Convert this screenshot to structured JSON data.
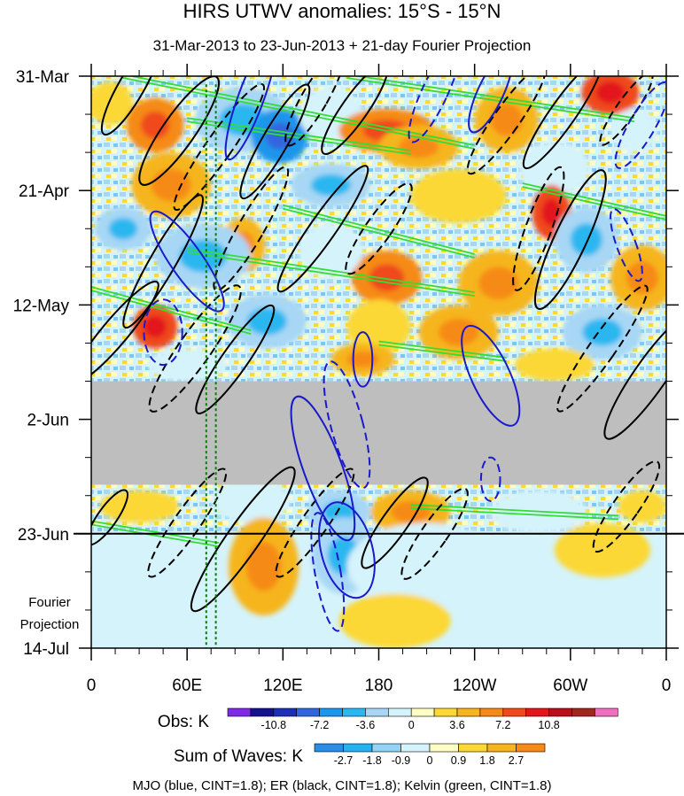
{
  "chart_data": {
    "type": "heatmap",
    "title": "HIRS UTWV anomalies: 15°S - 15°N",
    "subtitle": "31-Mar-2013 to 23-Jun-2013 + 21-day Fourier Projection",
    "x_ticks": [
      "0",
      "60E",
      "120E",
      "180",
      "120W",
      "60W",
      "0"
    ],
    "x_tick_lons": [
      0,
      60,
      120,
      180,
      240,
      300,
      360
    ],
    "x_range": [
      0,
      360
    ],
    "y_ticks": [
      "31-Mar",
      "21-Apr",
      "12-May",
      "2-Jun",
      "23-Jun",
      "14-Jul"
    ],
    "y_tick_days": [
      0,
      21,
      42,
      63,
      84,
      105
    ],
    "y_range_days": [
      0,
      105
    ],
    "observation_end_day": 84,
    "missing_data_band_days": [
      56,
      75
    ],
    "projection_label": [
      "Fourier",
      "Projection"
    ],
    "reference_lines_lon": [
      72,
      78
    ],
    "obs_legend": {
      "label": "Obs: K",
      "colors": [
        "#7f2ae6",
        "#14128c",
        "#1c2fb5",
        "#3366dd",
        "#1e96eb",
        "#2ab7f0",
        "#a7d7f5",
        "#d5f3fb",
        "#fffdc6",
        "#fbd836",
        "#f6b51e",
        "#f68a19",
        "#ef4a1b",
        "#e2161b",
        "#b90f1c",
        "#a0261e",
        "#ee6fc0"
      ],
      "labels": [
        "-10.8",
        "-7.2",
        "-3.6",
        "0",
        "3.6",
        "7.2",
        "10.8"
      ]
    },
    "waves_legend": {
      "label": "Sum of Waves: K",
      "colors": [
        "#2b8de6",
        "#26b1ef",
        "#93d3f4",
        "#d5f3fb",
        "#fffdc6",
        "#fbd836",
        "#f6b51e",
        "#f68a19"
      ],
      "labels": [
        "-2.7",
        "-1.8",
        "-0.9",
        "0",
        "0.9",
        "1.8",
        "2.7"
      ]
    },
    "footer": "MJO (blue, CINT=1.8); ER (black, CINT=1.8); Kelvin (green, CINT=1.8)",
    "colors": {
      "mjo": "#1a1acc",
      "er": "#000000",
      "kelvin": "#33dd33",
      "missing": "#bebebe",
      "ref_line": "#0a7a0a"
    },
    "anomaly_blobs": [
      {
        "lon": 12,
        "day": 5,
        "rx": 14,
        "ry": 4,
        "cls": 1
      },
      {
        "lon": 40,
        "day": 9,
        "rx": 18,
        "ry": 5,
        "cls": 3
      },
      {
        "lon": 95,
        "day": 8,
        "rx": 30,
        "ry": 6,
        "cls": -2
      },
      {
        "lon": 118,
        "day": 11,
        "rx": 18,
        "ry": 5,
        "cls": -4
      },
      {
        "lon": 150,
        "day": 7,
        "rx": 20,
        "ry": 5,
        "cls": -1
      },
      {
        "lon": 185,
        "day": 10,
        "rx": 30,
        "ry": 4,
        "cls": 3
      },
      {
        "lon": 205,
        "day": 13,
        "rx": 25,
        "ry": 4,
        "cls": 2
      },
      {
        "lon": 260,
        "day": 8,
        "rx": 20,
        "ry": 6,
        "cls": 2
      },
      {
        "lon": 325,
        "day": 3,
        "rx": 18,
        "ry": 4,
        "cls": 4
      },
      {
        "lon": 340,
        "day": 10,
        "rx": 15,
        "ry": 4,
        "cls": -1
      },
      {
        "lon": 290,
        "day": 17,
        "rx": 22,
        "ry": 5,
        "cls": -1
      },
      {
        "lon": 50,
        "day": 20,
        "rx": 25,
        "ry": 6,
        "cls": 2
      },
      {
        "lon": 150,
        "day": 20,
        "rx": 25,
        "ry": 4,
        "cls": -2
      },
      {
        "lon": 230,
        "day": 22,
        "rx": 30,
        "ry": 5,
        "cls": 1
      },
      {
        "lon": 288,
        "day": 25,
        "rx": 12,
        "ry": 5,
        "cls": 4
      },
      {
        "lon": 20,
        "day": 28,
        "rx": 18,
        "ry": 4,
        "cls": -2
      },
      {
        "lon": 95,
        "day": 31,
        "rx": 14,
        "ry": 5,
        "cls": 2
      },
      {
        "lon": 70,
        "day": 33,
        "rx": 30,
        "ry": 6,
        "cls": -2
      },
      {
        "lon": 185,
        "day": 37,
        "rx": 22,
        "ry": 5,
        "cls": 3
      },
      {
        "lon": 150,
        "day": 32,
        "rx": 20,
        "ry": 5,
        "cls": -1
      },
      {
        "lon": 255,
        "day": 38,
        "rx": 25,
        "ry": 6,
        "cls": 2
      },
      {
        "lon": 345,
        "day": 37,
        "rx": 20,
        "ry": 6,
        "cls": 2
      },
      {
        "lon": 310,
        "day": 30,
        "rx": 20,
        "ry": 6,
        "cls": -2
      },
      {
        "lon": 40,
        "day": 46,
        "rx": 14,
        "ry": 4,
        "cls": 4
      },
      {
        "lon": 110,
        "day": 45,
        "rx": 25,
        "ry": 5,
        "cls": -2
      },
      {
        "lon": 180,
        "day": 46,
        "rx": 20,
        "ry": 5,
        "cls": 1
      },
      {
        "lon": 230,
        "day": 47,
        "rx": 25,
        "ry": 5,
        "cls": 2
      },
      {
        "lon": 320,
        "day": 47,
        "rx": 25,
        "ry": 5,
        "cls": -2
      },
      {
        "lon": 60,
        "day": 53,
        "rx": 25,
        "ry": 3,
        "cls": -1
      },
      {
        "lon": 170,
        "day": 52,
        "rx": 20,
        "ry": 3,
        "cls": 2
      },
      {
        "lon": 290,
        "day": 53,
        "rx": 25,
        "ry": 3,
        "cls": 1
      },
      {
        "lon": 30,
        "day": 79,
        "rx": 25,
        "ry": 3,
        "cls": 1
      },
      {
        "lon": 100,
        "day": 78,
        "rx": 25,
        "ry": 4,
        "cls": -1
      },
      {
        "lon": 155,
        "day": 80,
        "rx": 20,
        "ry": 4,
        "cls": -2
      },
      {
        "lon": 200,
        "day": 80,
        "rx": 25,
        "ry": 4,
        "cls": 2
      },
      {
        "lon": 280,
        "day": 80,
        "rx": 30,
        "ry": 4,
        "cls": -1
      },
      {
        "lon": 345,
        "day": 79,
        "rx": 15,
        "ry": 3,
        "cls": 1
      },
      {
        "lon": 108,
        "day": 90,
        "rx": 22,
        "ry": 9,
        "cls": 2
      },
      {
        "lon": 158,
        "day": 88,
        "rx": 20,
        "ry": 7,
        "cls": -2
      },
      {
        "lon": 210,
        "day": 90,
        "rx": 50,
        "ry": 8,
        "cls": -1
      },
      {
        "lon": 320,
        "day": 87,
        "rx": 30,
        "ry": 5,
        "cls": 1
      },
      {
        "lon": 190,
        "day": 100,
        "rx": 35,
        "ry": 5,
        "cls": 1
      },
      {
        "lon": 60,
        "day": 100,
        "rx": 30,
        "ry": 4,
        "cls": -1
      }
    ],
    "mjo_contours": [
      {
        "lon": 100,
        "day": 4,
        "rx": 4,
        "ry": 12,
        "rot": 20,
        "dash": false
      },
      {
        "lon": 215,
        "day": 3,
        "rx": 4,
        "ry": 10,
        "rot": 25,
        "dash": true
      },
      {
        "lon": 250,
        "day": 3,
        "rx": 4,
        "ry": 8,
        "rot": 25,
        "dash": false
      },
      {
        "lon": 345,
        "day": 9,
        "rx": 4,
        "ry": 9,
        "rot": 30,
        "dash": true
      },
      {
        "lon": 60,
        "day": 34,
        "rx": 5,
        "ry": 11,
        "rot": -35,
        "dash": false
      },
      {
        "lon": 45,
        "day": 47,
        "rx": 6,
        "ry": 6,
        "rot": 0,
        "dash": true
      },
      {
        "lon": 335,
        "day": 31,
        "rx": 3,
        "ry": 7,
        "rot": -20,
        "dash": true
      },
      {
        "lon": 250,
        "day": 55,
        "rx": 6,
        "ry": 10,
        "rot": -25,
        "dash": false
      },
      {
        "lon": 170,
        "day": 52,
        "rx": 3,
        "ry": 5,
        "rot": 0,
        "dash": false
      },
      {
        "lon": 160,
        "day": 64,
        "rx": 5,
        "ry": 12,
        "rot": -15,
        "dash": true
      },
      {
        "lon": 145,
        "day": 72,
        "rx": 6,
        "ry": 14,
        "rot": -20,
        "dash": false
      },
      {
        "lon": 160,
        "day": 87,
        "rx": 8,
        "ry": 9,
        "rot": -15,
        "dash": false
      },
      {
        "lon": 148,
        "day": 91,
        "rx": 4,
        "ry": 11,
        "rot": -10,
        "dash": true
      },
      {
        "lon": 250,
        "day": 74,
        "rx": 3,
        "ry": 4,
        "rot": 0,
        "dash": true
      }
    ],
    "er_contours": [
      {
        "lon": 25,
        "day": 2,
        "rx": 4,
        "ry": 10,
        "rot": 30,
        "dash": false
      },
      {
        "lon": 55,
        "day": 10,
        "rx": 5,
        "ry": 12,
        "rot": 35,
        "dash": false
      },
      {
        "lon": 80,
        "day": 13,
        "rx": 4,
        "ry": 14,
        "rot": 35,
        "dash": true
      },
      {
        "lon": 115,
        "day": 12,
        "rx": 4,
        "ry": 12,
        "rot": 30,
        "dash": false
      },
      {
        "lon": 140,
        "day": 4,
        "rx": 4,
        "ry": 10,
        "rot": 30,
        "dash": true
      },
      {
        "lon": 165,
        "day": 6,
        "rx": 4,
        "ry": 10,
        "rot": 35,
        "dash": false
      },
      {
        "lon": 260,
        "day": 8,
        "rx": 4,
        "ry": 12,
        "rot": 35,
        "dash": true
      },
      {
        "lon": 295,
        "day": 7,
        "rx": 4,
        "ry": 12,
        "rot": 35,
        "dash": false
      },
      {
        "lon": 335,
        "day": 6,
        "rx": 3,
        "ry": 8,
        "rot": 35,
        "dash": true
      },
      {
        "lon": 45,
        "day": 34,
        "rx": 4,
        "ry": 14,
        "rot": 30,
        "dash": false
      },
      {
        "lon": 100,
        "day": 28,
        "rx": 4,
        "ry": 13,
        "rot": 30,
        "dash": true
      },
      {
        "lon": 145,
        "day": 28,
        "rx": 4,
        "ry": 14,
        "rot": 35,
        "dash": false
      },
      {
        "lon": 180,
        "day": 28,
        "rx": 4,
        "ry": 10,
        "rot": 35,
        "dash": true
      },
      {
        "lon": 280,
        "day": 28,
        "rx": 4,
        "ry": 12,
        "rot": 20,
        "dash": true
      },
      {
        "lon": 300,
        "day": 30,
        "rx": 5,
        "ry": 14,
        "rot": 25,
        "dash": false
      },
      {
        "lon": 15,
        "day": 47,
        "rx": 4,
        "ry": 12,
        "rot": 40,
        "dash": false
      },
      {
        "lon": 65,
        "day": 50,
        "rx": 5,
        "ry": 14,
        "rot": 35,
        "dash": true
      },
      {
        "lon": 90,
        "day": 52,
        "rx": 4,
        "ry": 12,
        "rot": 35,
        "dash": false
      },
      {
        "lon": 320,
        "day": 50,
        "rx": 4,
        "ry": 14,
        "rot": 35,
        "dash": true
      },
      {
        "lon": 350,
        "day": 55,
        "rx": 5,
        "ry": 14,
        "rot": 35,
        "dash": false
      },
      {
        "lon": 60,
        "day": 82,
        "rx": 4,
        "ry": 12,
        "rot": 35,
        "dash": true
      },
      {
        "lon": 95,
        "day": 85,
        "rx": 5,
        "ry": 16,
        "rot": 35,
        "dash": false
      },
      {
        "lon": 140,
        "day": 82,
        "rx": 4,
        "ry": 12,
        "rot": 35,
        "dash": true
      },
      {
        "lon": 190,
        "day": 82,
        "rx": 4,
        "ry": 10,
        "rot": 35,
        "dash": false
      },
      {
        "lon": 215,
        "day": 84,
        "rx": 4,
        "ry": 10,
        "rot": 35,
        "dash": true
      },
      {
        "lon": 335,
        "day": 79,
        "rx": 4,
        "ry": 10,
        "rot": 35,
        "dash": true
      },
      {
        "lon": 10,
        "day": 81,
        "rx": 3,
        "ry": 6,
        "rot": 35,
        "dash": false
      }
    ],
    "kelvin_lines": [
      {
        "lon0": 20,
        "day0": 0,
        "lon1": 240,
        "day1": 13
      },
      {
        "lon0": 160,
        "day0": 0,
        "lon1": 340,
        "day1": 8
      },
      {
        "lon0": 60,
        "day0": 8,
        "lon1": 200,
        "day1": 14
      },
      {
        "lon0": 270,
        "day0": 20,
        "lon1": 360,
        "day1": 26
      },
      {
        "lon0": 60,
        "day0": 32,
        "lon1": 240,
        "day1": 40
      },
      {
        "lon0": 120,
        "day0": 24,
        "lon1": 240,
        "day1": 33
      },
      {
        "lon0": 0,
        "day0": 39,
        "lon1": 100,
        "day1": 47
      },
      {
        "lon0": 180,
        "day0": 49,
        "lon1": 260,
        "day1": 52
      },
      {
        "lon0": 200,
        "day0": 79,
        "lon1": 330,
        "day1": 81
      },
      {
        "lon0": 0,
        "day0": 82,
        "lon1": 80,
        "day1": 86
      }
    ]
  }
}
